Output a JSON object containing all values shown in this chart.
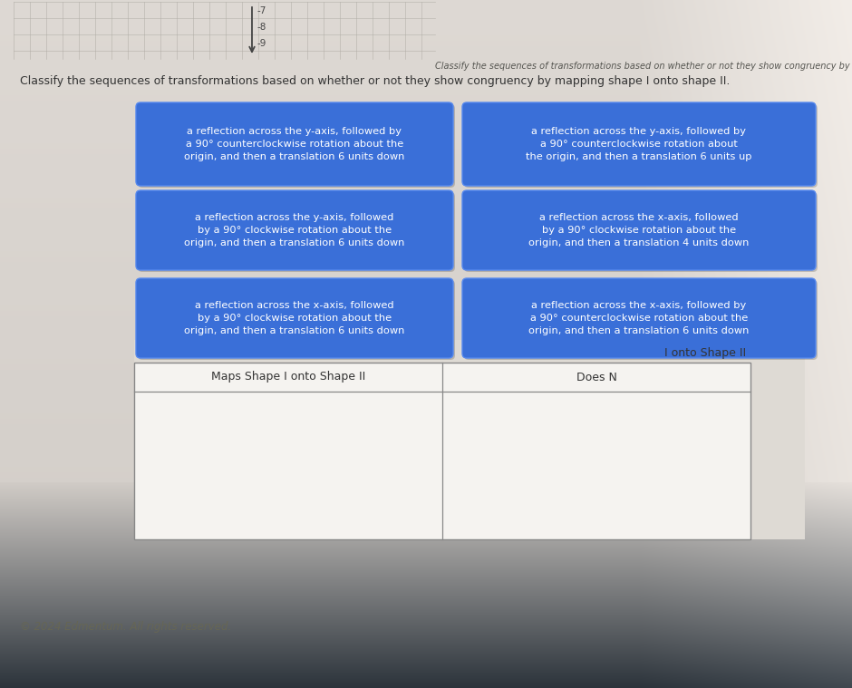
{
  "bg_color_top": "#d8d5cf",
  "bg_color_mid": "#dedad4",
  "bg_color_bot": "#2a2a35",
  "box_color": "#3a6fd8",
  "box_text_color": "#ffffff",
  "grid_color": "#b8b5ae",
  "boxes": [
    {
      "text": "a reflection across the y-axis, followed by\na 90° counterclockwise rotation about the\norigin, and then a translation 6 units down",
      "col": 0,
      "row": 0
    },
    {
      "text": "a reflection across the y-axis, followed by\na 90° counterclockwise rotation about\nthe origin, and then a translation 6 units up",
      "col": 1,
      "row": 0
    },
    {
      "text": "a reflection across the y-axis, followed\nby a 90° clockwise rotation about the\norigin, and then a translation 6 units down",
      "col": 0,
      "row": 1
    },
    {
      "text": "a reflection across the x-axis, followed\nby a 90° clockwise rotation about the\norigin, and then a translation 4 units down",
      "col": 1,
      "row": 1
    },
    {
      "text": "a reflection across the x-axis, followed\nby a 90° clockwise rotation about the\norigin, and then a translation 6 units down",
      "col": 0,
      "row": 2
    },
    {
      "text": "a reflection across the x-axis, followed by\na 90° counterclockwise rotation about the\norigin, and then a translation 6 units down",
      "col": 1,
      "row": 2
    }
  ],
  "top_subtitle": "Classify the sequences of transformations based on whether or not they show congruency by mapping shape I onto shape II.",
  "main_title": "Classify the sequences of transformations based on whether or not they show congruency by mapping shape I onto shape II.",
  "table_col1": "Maps Shape I onto Shape II",
  "table_col2": "Does Not Map Shape I onto Shape II",
  "table_col2_top": "I onto Shape II",
  "table_col2_sub": "Does N",
  "copyright": "© 2024 Edmentum. All rights reserved."
}
